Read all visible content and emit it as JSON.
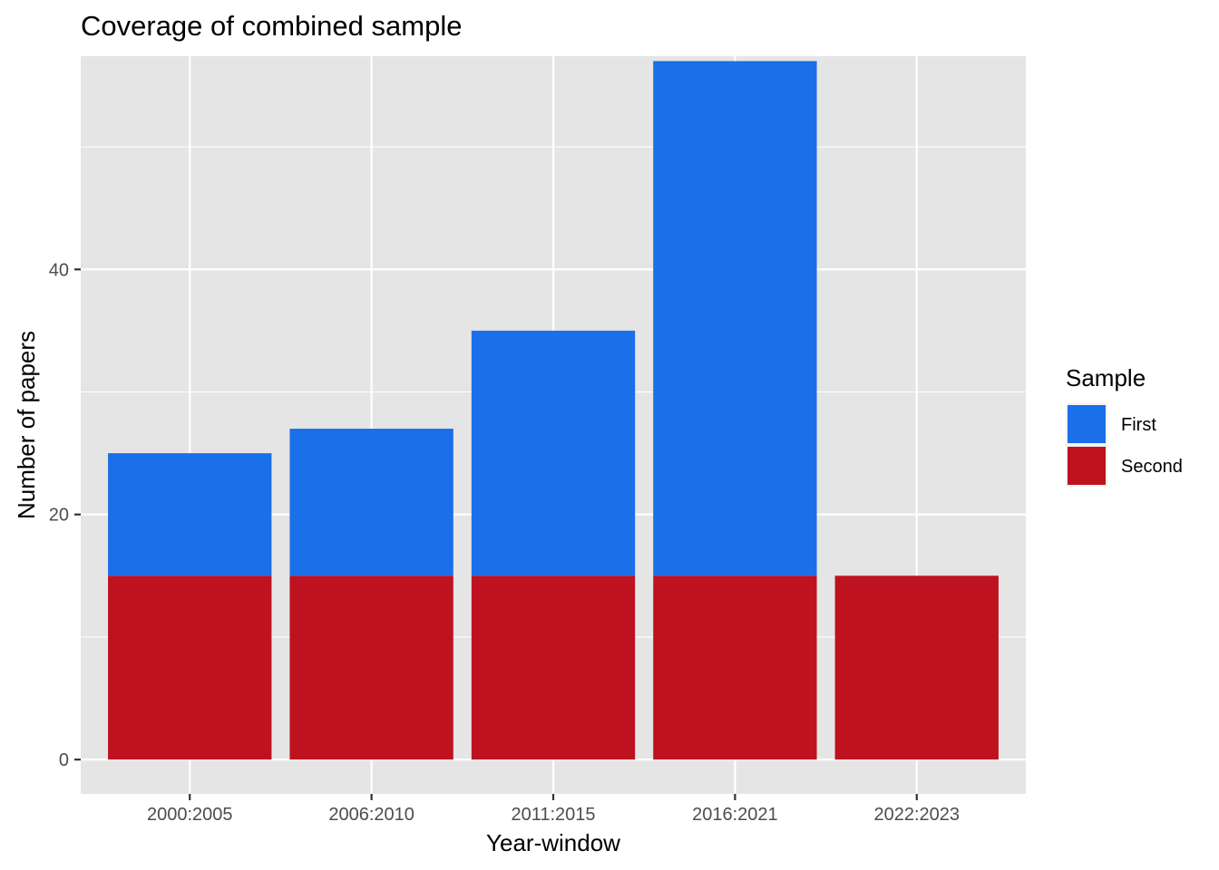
{
  "chart_data": {
    "type": "bar",
    "stacked": true,
    "title": "Coverage of combined sample",
    "xlabel": "Year-window",
    "ylabel": "Number of papers",
    "categories": [
      "2000:2005",
      "2006:2010",
      "2011:2015",
      "2016:2021",
      "2022:2023"
    ],
    "series": [
      {
        "name": "Second",
        "color": "#BE1220",
        "values": [
          15,
          15,
          15,
          15,
          15
        ]
      },
      {
        "name": "First",
        "color": "#1B6FE8",
        "values": [
          10,
          12,
          20,
          42,
          0
        ]
      }
    ],
    "ylim": [
      -2.8,
      57.4
    ],
    "yticks": [
      0,
      20,
      40
    ],
    "grid": true,
    "legend": {
      "title": "Sample",
      "position": "right",
      "items": [
        "First",
        "Second"
      ]
    },
    "colors": {
      "panel": "#E5E5E5",
      "grid": "#FFFFFF",
      "first": "#1B6FE8",
      "second": "#BE1220"
    }
  }
}
